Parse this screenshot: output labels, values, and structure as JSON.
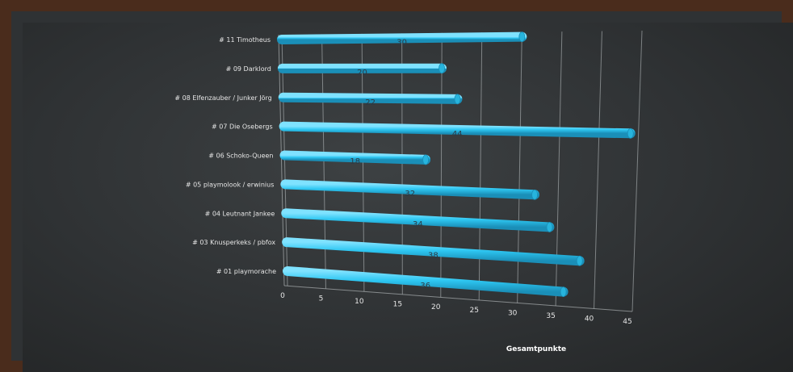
{
  "chart_data": {
    "type": "bar",
    "orientation": "horizontal",
    "categories": [
      "# 11 Timotheus",
      "# 09 Darklord",
      "# 08 Elfenzauber / Junker Jörg",
      "# 07 Die Osebergs",
      "# 06 Schoko-Queen",
      "# 05 playmolook / erwinius",
      "# 04 Leutnant Jankee",
      "# 03 Knusperkeks / pbfox",
      "# 01 playmorache"
    ],
    "values": [
      30,
      20,
      22,
      44,
      18,
      32,
      34,
      38,
      36
    ],
    "xlabel": "Gesamtpunkte",
    "xlim": [
      0,
      45
    ],
    "xticks": [
      0,
      5,
      10,
      15,
      20,
      25,
      30,
      35,
      40,
      45
    ],
    "bar_color": "#2ec7f2",
    "background_color": "#2f3234",
    "frame_color": "#4a2c1c",
    "grid": true
  }
}
